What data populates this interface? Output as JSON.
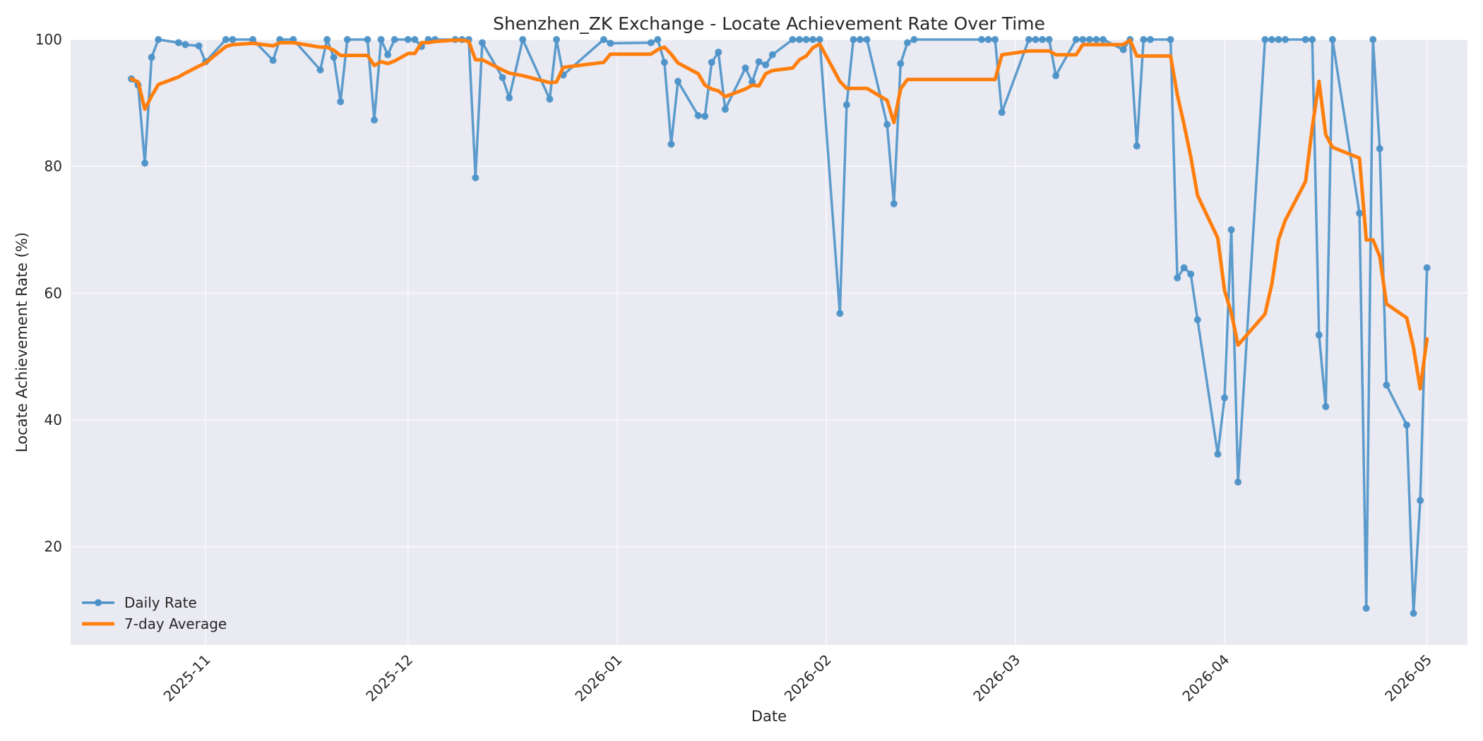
{
  "chart_data": {
    "type": "line",
    "title": "Shenzhen_ZK Exchange - Locate Achievement Rate Over Time",
    "xlabel": "Date",
    "ylabel": "Locate Achievement Rate (%)",
    "xlim": [
      "2025-10-12",
      "2026-05-07"
    ],
    "ylim": [
      4.5,
      100
    ],
    "x_ticks": [
      "2025-11-01",
      "2025-12-01",
      "2026-01-01",
      "2026-02-01",
      "2026-03-01",
      "2026-04-01",
      "2026-05-01"
    ],
    "x_tick_labels": [
      "2025-11",
      "2025-12",
      "2026-01",
      "2026-02",
      "2026-03",
      "2026-04",
      "2026-05"
    ],
    "y_ticks": [
      20,
      40,
      60,
      80,
      100
    ],
    "y_tick_labels": [
      "20",
      "40",
      "60",
      "80",
      "100"
    ],
    "grid": true,
    "legend_position": "lower-left",
    "background_color": "#eaeaf2",
    "series": [
      {
        "name": "Daily Rate",
        "color": "#4c92c8",
        "marker": "circle",
        "x": [
          "2025-10-21",
          "2025-10-22",
          "2025-10-23",
          "2025-10-24",
          "2025-10-25",
          "2025-10-28",
          "2025-10-29",
          "2025-10-31",
          "2025-11-01",
          "2025-11-04",
          "2025-11-05",
          "2025-11-08",
          "2025-11-11",
          "2025-11-12",
          "2025-11-14",
          "2025-11-18",
          "2025-11-19",
          "2025-11-20",
          "2025-11-21",
          "2025-11-22",
          "2025-11-25",
          "2025-11-26",
          "2025-11-27",
          "2025-11-28",
          "2025-11-29",
          "2025-12-01",
          "2025-12-02",
          "2025-12-03",
          "2025-12-04",
          "2025-12-05",
          "2025-12-08",
          "2025-12-09",
          "2025-12-10",
          "2025-12-11",
          "2025-12-12",
          "2025-12-15",
          "2025-12-16",
          "2025-12-18",
          "2025-12-22",
          "2025-12-23",
          "2025-12-24",
          "2025-12-30",
          "2025-12-31",
          "2026-01-06",
          "2026-01-07",
          "2026-01-08",
          "2026-01-09",
          "2026-01-10",
          "2026-01-13",
          "2026-01-14",
          "2026-01-15",
          "2026-01-16",
          "2026-01-17",
          "2026-01-20",
          "2026-01-21",
          "2026-01-22",
          "2026-01-23",
          "2026-01-24",
          "2026-01-27",
          "2026-01-28",
          "2026-01-29",
          "2026-01-30",
          "2026-01-31",
          "2026-02-03",
          "2026-02-04",
          "2026-02-05",
          "2026-02-06",
          "2026-02-07",
          "2026-02-10",
          "2026-02-11",
          "2026-02-12",
          "2026-02-13",
          "2026-02-14",
          "2026-02-24",
          "2026-02-25",
          "2026-02-26",
          "2026-02-27",
          "2026-03-03",
          "2026-03-04",
          "2026-03-05",
          "2026-03-06",
          "2026-03-07",
          "2026-03-10",
          "2026-03-11",
          "2026-03-12",
          "2026-03-13",
          "2026-03-14",
          "2026-03-17",
          "2026-03-18",
          "2026-03-19",
          "2026-03-20",
          "2026-03-21",
          "2026-03-24",
          "2026-03-25",
          "2026-03-26",
          "2026-03-27",
          "2026-03-28",
          "2026-03-31",
          "2026-04-01",
          "2026-04-02",
          "2026-04-03",
          "2026-04-07",
          "2026-04-08",
          "2026-04-09",
          "2026-04-10",
          "2026-04-13",
          "2026-04-14",
          "2026-04-15",
          "2026-04-16",
          "2026-04-17",
          "2026-04-21",
          "2026-04-22",
          "2026-04-23",
          "2026-04-24",
          "2026-04-25",
          "2026-04-28",
          "2026-04-29",
          "2026-04-30",
          "2026-05-01"
        ],
        "y": [
          93.8,
          92.8,
          80.5,
          97.2,
          100,
          99.5,
          99.2,
          99.0,
          96.5,
          100,
          100,
          100,
          96.7,
          100,
          100,
          95.2,
          100,
          97.2,
          90.2,
          100,
          100,
          87.3,
          100,
          97.6,
          100,
          100,
          100,
          98.9,
          100,
          100,
          100,
          100,
          100,
          78.2,
          99.5,
          94.0,
          90.8,
          100,
          90.6,
          100,
          94.4,
          100,
          99.4,
          99.5,
          100,
          96.4,
          83.5,
          93.4,
          88.0,
          87.9,
          96.4,
          98.0,
          89.0,
          95.5,
          93.3,
          96.5,
          96.0,
          97.6,
          100,
          100,
          100,
          100,
          100,
          56.8,
          89.7,
          100,
          100,
          100,
          86.6,
          74.1,
          96.2,
          99.5,
          100,
          100,
          100,
          100,
          88.5,
          100,
          100,
          100,
          100,
          94.3,
          100,
          100,
          100,
          100,
          100,
          98.4,
          100,
          83.2,
          100,
          100,
          100,
          62.4,
          64.0,
          63.0,
          55.8,
          34.6,
          43.5,
          70.0,
          30.2,
          100,
          100,
          100,
          100,
          100,
          100,
          53.4,
          42.1,
          100,
          72.6,
          10.3,
          100,
          82.8,
          45.5,
          39.2,
          9.5,
          27.3,
          64.0
        ]
      },
      {
        "name": "7-day Average",
        "color": "#ff7f0e",
        "marker": "none",
        "x": [
          "2025-10-21",
          "2025-10-22",
          "2025-10-23",
          "2025-10-24",
          "2025-10-25",
          "2025-10-28",
          "2025-10-29",
          "2025-10-31",
          "2025-11-01",
          "2025-11-04",
          "2025-11-05",
          "2025-11-08",
          "2025-11-11",
          "2025-11-12",
          "2025-11-14",
          "2025-11-18",
          "2025-11-19",
          "2025-11-20",
          "2025-11-21",
          "2025-11-22",
          "2025-11-25",
          "2025-11-26",
          "2025-11-27",
          "2025-11-28",
          "2025-11-29",
          "2025-12-01",
          "2025-12-02",
          "2025-12-03",
          "2025-12-04",
          "2025-12-05",
          "2025-12-08",
          "2025-12-09",
          "2025-12-10",
          "2025-12-11",
          "2025-12-12",
          "2025-12-15",
          "2025-12-16",
          "2025-12-18",
          "2025-12-22",
          "2025-12-23",
          "2025-12-24",
          "2025-12-30",
          "2025-12-31",
          "2026-01-06",
          "2026-01-07",
          "2026-01-08",
          "2026-01-09",
          "2026-01-10",
          "2026-01-13",
          "2026-01-14",
          "2026-01-15",
          "2026-01-16",
          "2026-01-17",
          "2026-01-20",
          "2026-01-21",
          "2026-01-22",
          "2026-01-23",
          "2026-01-24",
          "2026-01-27",
          "2026-01-28",
          "2026-01-29",
          "2026-01-30",
          "2026-01-31",
          "2026-02-03",
          "2026-02-04",
          "2026-02-05",
          "2026-02-06",
          "2026-02-07",
          "2026-02-10",
          "2026-02-11",
          "2026-02-12",
          "2026-02-13",
          "2026-02-14",
          "2026-02-24",
          "2026-02-25",
          "2026-02-26",
          "2026-02-27",
          "2026-03-03",
          "2026-03-04",
          "2026-03-05",
          "2026-03-06",
          "2026-03-07",
          "2026-03-10",
          "2026-03-11",
          "2026-03-12",
          "2026-03-13",
          "2026-03-14",
          "2026-03-17",
          "2026-03-18",
          "2026-03-19",
          "2026-03-20",
          "2026-03-21",
          "2026-03-24",
          "2026-03-25",
          "2026-03-26",
          "2026-03-27",
          "2026-03-28",
          "2026-03-31",
          "2026-04-01",
          "2026-04-02",
          "2026-04-03",
          "2026-04-07",
          "2026-04-08",
          "2026-04-09",
          "2026-04-10",
          "2026-04-13",
          "2026-04-14",
          "2026-04-15",
          "2026-04-16",
          "2026-04-17",
          "2026-04-21",
          "2026-04-22",
          "2026-04-23",
          "2026-04-24",
          "2026-04-25",
          "2026-04-28",
          "2026-04-29",
          "2026-04-30",
          "2026-05-01"
        ],
        "y": [
          93.8,
          93.3,
          89.0,
          91.1,
          92.9,
          94.1,
          94.7,
          95.8,
          96.3,
          98.9,
          99.2,
          99.4,
          99.0,
          99.5,
          99.5,
          98.8,
          98.8,
          98.3,
          97.5,
          97.5,
          97.5,
          95.9,
          96.5,
          96.2,
          96.6,
          97.8,
          97.8,
          99.5,
          99.5,
          99.7,
          99.9,
          99.9,
          99.7,
          96.8,
          96.8,
          95.2,
          94.7,
          94.3,
          93.2,
          93.3,
          95.6,
          96.4,
          97.7,
          97.7,
          98.4,
          98.8,
          97.7,
          96.3,
          94.6,
          92.8,
          92.2,
          91.9,
          91.0,
          92.2,
          92.8,
          92.7,
          94.6,
          95.1,
          95.5,
          96.8,
          97.4,
          98.7,
          99.3,
          93.4,
          92.3,
          92.3,
          92.3,
          92.3,
          90.4,
          86.9,
          92.2,
          93.7,
          93.7,
          93.7,
          93.7,
          93.7,
          97.6,
          98.2,
          98.2,
          98.2,
          98.2,
          97.6,
          97.6,
          99.2,
          99.2,
          99.2,
          99.2,
          99.2,
          99.9,
          97.4,
          97.4,
          97.4,
          97.4,
          91.3,
          86.6,
          81.5,
          75.4,
          68.7,
          60.4,
          56.9,
          51.8,
          56.7,
          61.4,
          68.4,
          71.5,
          77.6,
          86.1,
          93.4,
          85.0,
          83.0,
          81.3,
          68.4,
          68.4,
          65.8,
          58.3,
          56.1,
          51.4,
          44.9,
          52.8
        ]
      }
    ]
  }
}
